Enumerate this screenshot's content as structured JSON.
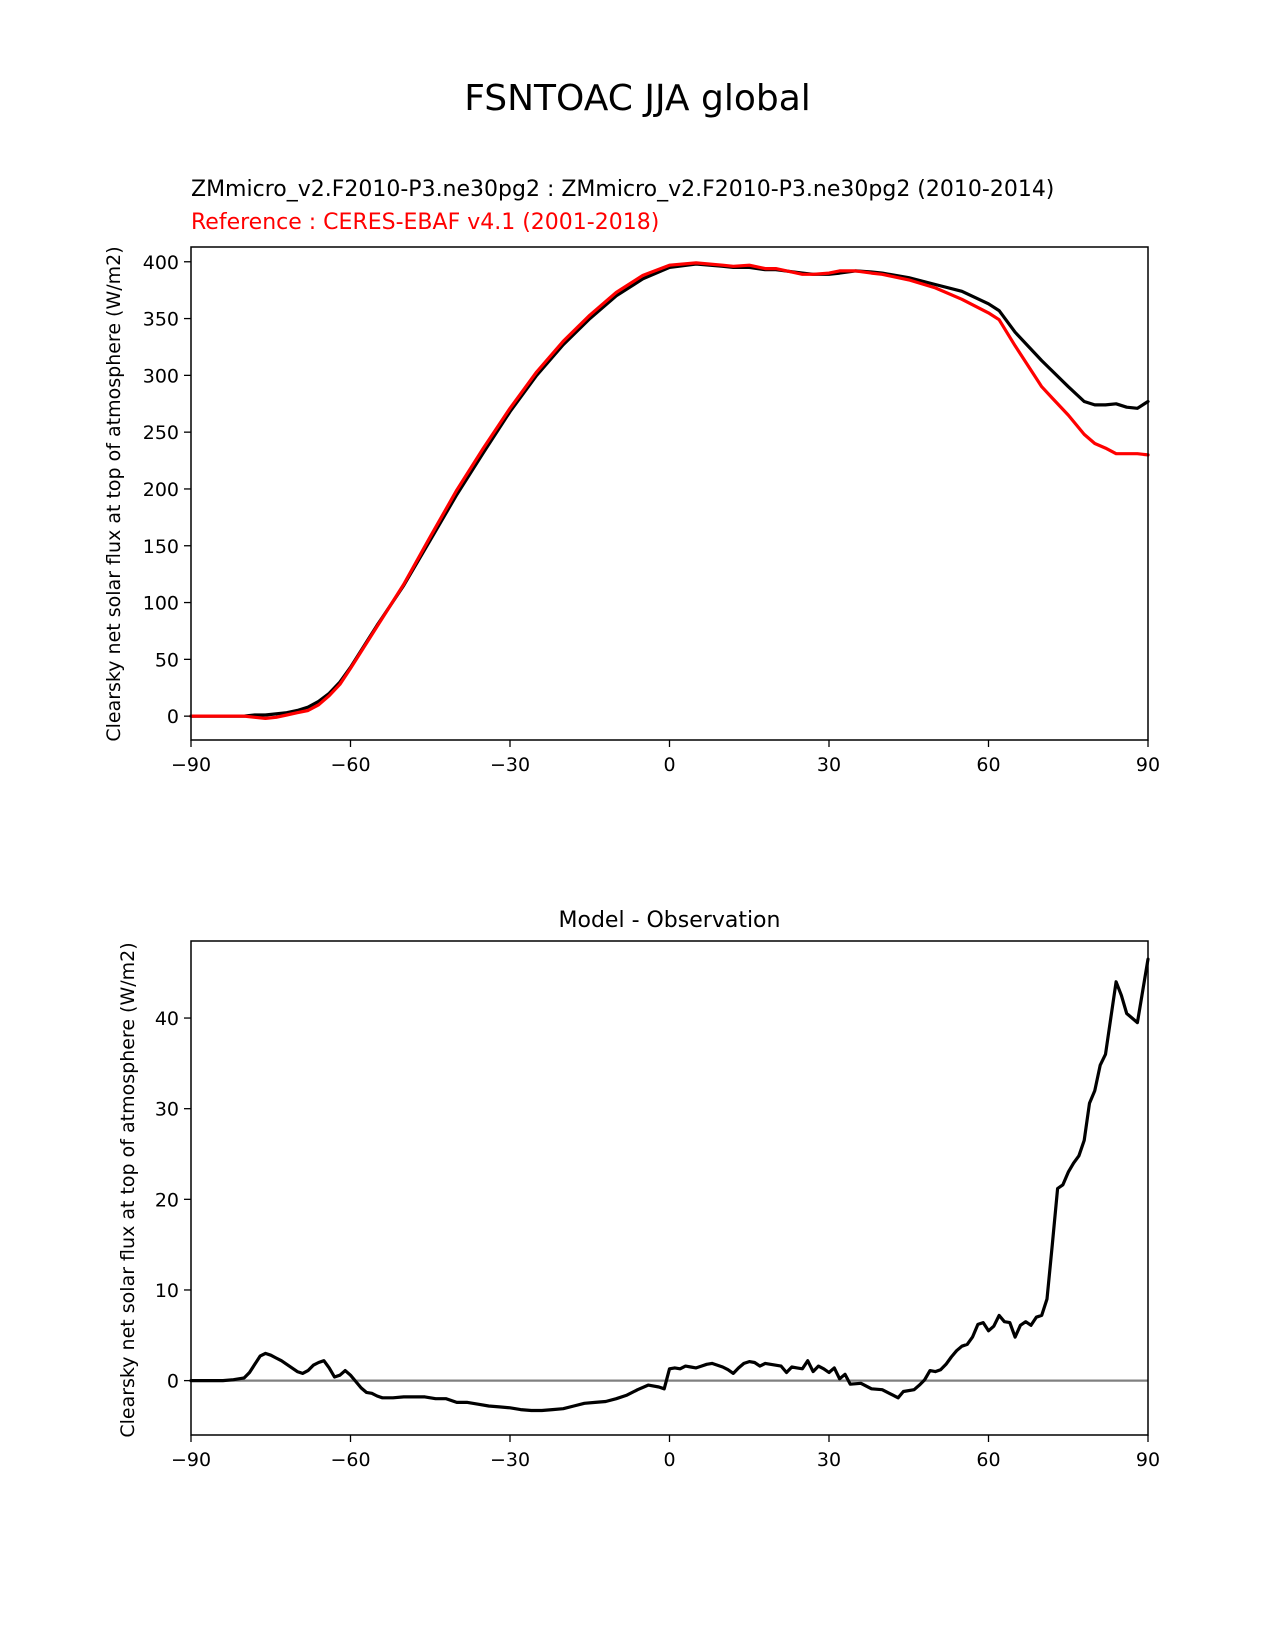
{
  "figure": {
    "suptitle": "FSNTOAC JJA global"
  },
  "chart_data": [
    {
      "type": "line",
      "title_model": "ZMmicro_v2.F2010-P3.ne30pg2 : ZMmicro_v2.F2010-P3.ne30pg2 (2010-2014)",
      "title_reference": "Reference : CERES-EBAF v4.1 (2001-2018)",
      "xlabel": "",
      "ylabel": "Clearsky net solar flux at top of atmosphere (W/m2)",
      "xlim": [
        -90,
        90
      ],
      "ylim": [
        -21,
        413
      ],
      "xticks": [
        -90,
        -60,
        -30,
        0,
        30,
        60,
        90
      ],
      "xtick_labels": [
        "−90",
        "−60",
        "−30",
        "0",
        "30",
        "60",
        "90"
      ],
      "yticks": [
        0,
        50,
        100,
        150,
        200,
        250,
        300,
        350,
        400
      ],
      "ytick_labels": [
        "0",
        "50",
        "100",
        "150",
        "200",
        "250",
        "300",
        "350",
        "400"
      ],
      "grid": false,
      "colors": {
        "model": "#000000",
        "reference": "#ff0000"
      },
      "series": [
        {
          "color": "#000000",
          "x": [
            -90,
            -85,
            -80,
            -78,
            -76,
            -74,
            -72,
            -70,
            -68,
            -66,
            -64,
            -62,
            -60,
            -55,
            -50,
            -45,
            -40,
            -35,
            -30,
            -25,
            -20,
            -15,
            -10,
            -5,
            0,
            5,
            10,
            12,
            15,
            18,
            20,
            25,
            27,
            30,
            32,
            35,
            38,
            40,
            45,
            50,
            55,
            60,
            62,
            65,
            70,
            75,
            78,
            80,
            82,
            84,
            86,
            88,
            90
          ],
          "y": [
            0,
            0,
            0,
            1,
            1,
            2,
            3,
            5,
            8,
            13,
            20,
            30,
            43,
            80,
            115,
            155,
            195,
            232,
            268,
            300,
            327,
            350,
            370,
            385,
            395,
            398,
            396,
            395,
            395,
            393,
            393,
            390,
            389,
            389,
            390,
            392,
            391,
            390,
            386,
            380,
            374,
            363,
            357,
            338,
            313,
            290,
            277,
            274,
            274,
            275,
            272,
            271,
            277
          ]
        },
        {
          "color": "#ff0000",
          "x": [
            -90,
            -85,
            -80,
            -78,
            -76,
            -74,
            -72,
            -70,
            -68,
            -66,
            -64,
            -62,
            -60,
            -55,
            -50,
            -45,
            -40,
            -35,
            -30,
            -25,
            -20,
            -15,
            -10,
            -5,
            0,
            5,
            10,
            12,
            15,
            18,
            20,
            25,
            27,
            30,
            32,
            35,
            38,
            40,
            45,
            50,
            55,
            60,
            62,
            65,
            70,
            72,
            75,
            78,
            80,
            82,
            84,
            86,
            88,
            90
          ],
          "y": [
            0,
            0,
            0,
            -1,
            -2,
            -1,
            1,
            3,
            5,
            10,
            18,
            28,
            42,
            79,
            116,
            158,
            199,
            236,
            271,
            303,
            330,
            353,
            373,
            388,
            397,
            399,
            397,
            396,
            397,
            394,
            394,
            389,
            389,
            390,
            392,
            392,
            390,
            389,
            384,
            377,
            367,
            355,
            349,
            326,
            290,
            280,
            265,
            248,
            240,
            236,
            231,
            231,
            231,
            230
          ]
        }
      ]
    },
    {
      "type": "line",
      "title": "Model - Observation",
      "xlabel": "",
      "ylabel": "Clearsky net solar flux at top of atmosphere (W/m2)",
      "xlim": [
        -90,
        90
      ],
      "ylim": [
        -6,
        48.5
      ],
      "xticks": [
        -90,
        -60,
        -30,
        0,
        30,
        60,
        90
      ],
      "xtick_labels": [
        "−90",
        "−60",
        "−30",
        "0",
        "30",
        "60",
        "90"
      ],
      "yticks": [
        0,
        10,
        20,
        30,
        40
      ],
      "ytick_labels": [
        "0",
        "10",
        "20",
        "30",
        "40"
      ],
      "grid": false,
      "zero_line": {
        "y": 0,
        "color": "#808080"
      },
      "series": [
        {
          "color": "#000000",
          "x": [
            -90,
            -84,
            -82,
            -80,
            -79,
            -78,
            -77,
            -76,
            -75,
            -74,
            -73,
            -72,
            -71,
            -70,
            -69,
            -68,
            -67,
            -66,
            -65,
            -64,
            -63,
            -62,
            -61,
            -60,
            -59,
            -58,
            -57,
            -56,
            -55,
            -54,
            -52,
            -50,
            -48,
            -46,
            -44,
            -42,
            -40,
            -38,
            -36,
            -34,
            -32,
            -30,
            -28,
            -26,
            -24,
            -22,
            -20,
            -18,
            -16,
            -14,
            -12,
            -10,
            -8,
            -6,
            -4,
            -2,
            -1,
            0,
            1,
            2,
            3,
            4,
            5,
            6,
            7,
            8,
            10,
            11,
            12,
            13,
            14,
            15,
            16,
            17,
            18,
            19,
            20,
            21,
            22,
            23,
            24,
            25,
            26,
            27,
            28,
            29,
            30,
            31,
            32,
            33,
            34,
            36,
            38,
            40,
            42,
            43,
            44,
            46,
            47,
            48,
            49,
            50,
            51,
            52,
            53,
            54,
            55,
            56,
            57,
            58,
            59,
            60,
            61,
            62,
            63,
            64,
            65,
            66,
            67,
            68,
            69,
            70,
            71,
            72,
            73,
            74,
            75,
            76,
            77,
            78,
            79,
            80,
            81,
            82,
            83,
            84,
            85,
            86,
            87,
            88,
            89,
            90
          ],
          "y": [
            0,
            0,
            0.1,
            0.3,
            0.9,
            1.8,
            2.7,
            3.0,
            2.8,
            2.5,
            2.2,
            1.8,
            1.4,
            1.0,
            0.8,
            1.1,
            1.7,
            2.0,
            2.2,
            1.4,
            0.4,
            0.6,
            1.1,
            0.6,
            -0.1,
            -0.8,
            -1.3,
            -1.4,
            -1.7,
            -1.9,
            -1.9,
            -1.8,
            -1.8,
            -1.8,
            -2.0,
            -2.0,
            -2.4,
            -2.4,
            -2.6,
            -2.8,
            -2.9,
            -3.0,
            -3.2,
            -3.3,
            -3.3,
            -3.2,
            -3.1,
            -2.8,
            -2.5,
            -2.4,
            -2.3,
            -2.0,
            -1.6,
            -1.0,
            -0.5,
            -0.7,
            -0.9,
            1.3,
            1.4,
            1.3,
            1.6,
            1.5,
            1.4,
            1.6,
            1.8,
            1.9,
            1.5,
            1.2,
            0.8,
            1.4,
            1.9,
            2.1,
            2.0,
            1.6,
            1.9,
            1.8,
            1.7,
            1.6,
            0.9,
            1.5,
            1.4,
            1.3,
            2.2,
            1.0,
            1.6,
            1.3,
            0.9,
            1.4,
            0.2,
            0.7,
            -0.4,
            -0.3,
            -0.9,
            -1.0,
            -1.6,
            -1.9,
            -1.2,
            -1.0,
            -0.5,
            0.1,
            1.1,
            1.0,
            1.2,
            1.8,
            2.6,
            3.3,
            3.8,
            4.0,
            4.8,
            6.2,
            6.4,
            5.5,
            6.0,
            7.2,
            6.5,
            6.4,
            4.8,
            6.1,
            6.5,
            6.1,
            7.0,
            7.2,
            9.0,
            15.0,
            21.2,
            21.6,
            23.0,
            24.0,
            24.8,
            26.5,
            30.6,
            32.0,
            34.8,
            36.0,
            40.0,
            44.0,
            42.5,
            40.5,
            40.0,
            39.5,
            43.0,
            46.5
          ]
        }
      ]
    }
  ]
}
